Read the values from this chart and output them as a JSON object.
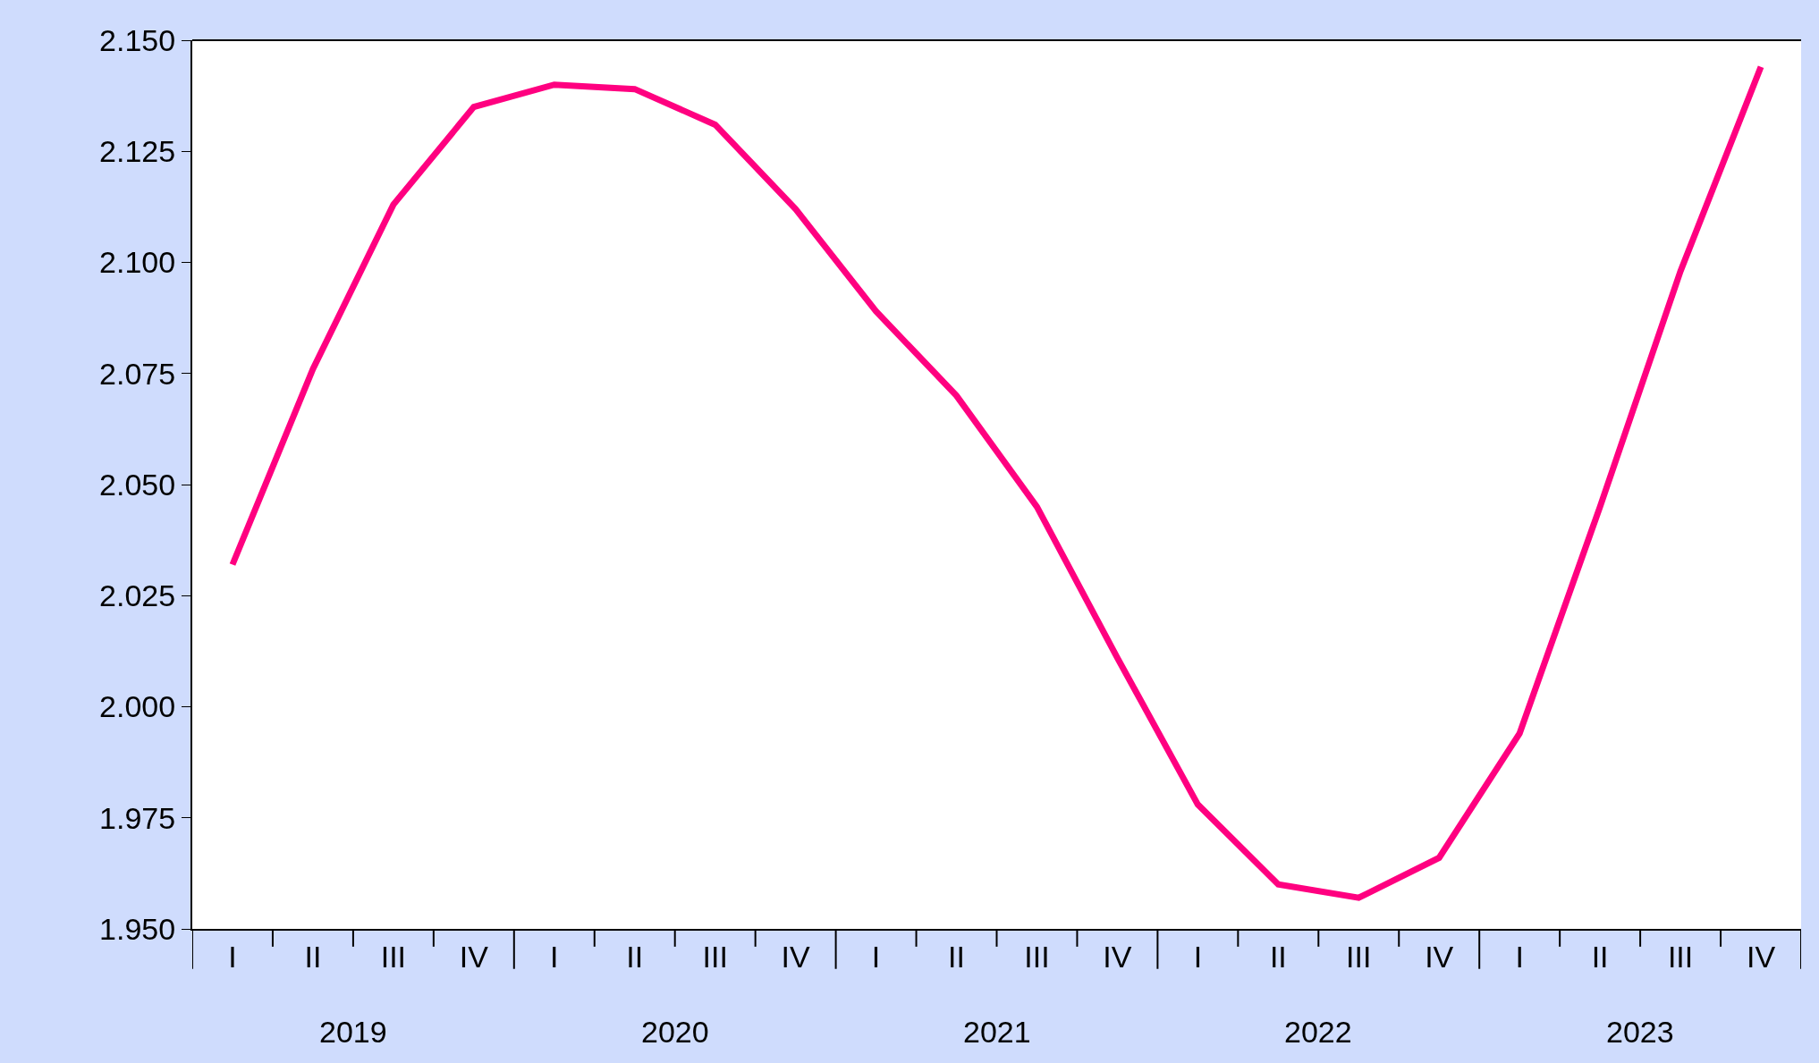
{
  "chart_data": {
    "type": "line",
    "categories": [
      "I",
      "II",
      "III",
      "IV",
      "I",
      "II",
      "III",
      "IV",
      "I",
      "II",
      "III",
      "IV",
      "I",
      "II",
      "III",
      "IV",
      "I",
      "II",
      "III",
      "IV"
    ],
    "series": [
      {
        "color": "#ff0080",
        "values": [
          2.032,
          2.076,
          2.113,
          2.135,
          2.14,
          2.139,
          2.131,
          2.112,
          2.089,
          2.07,
          2.045,
          2.011,
          1.978,
          1.96,
          1.957,
          1.966,
          1.994,
          2.045,
          2.098,
          2.144
        ]
      }
    ],
    "annotations": [
      "2019",
      "2020",
      "2021",
      "2022",
      "2023"
    ],
    "ylim": [
      1.95,
      2.15
    ],
    "yticks": [
      {
        "value": 1.95,
        "label": "1.950"
      },
      {
        "value": 1.975,
        "label": "1.975"
      },
      {
        "value": 2.0,
        "label": "2.000"
      },
      {
        "value": 2.025,
        "label": "2.025"
      },
      {
        "value": 2.05,
        "label": "2.050"
      },
      {
        "value": 2.075,
        "label": "2.075"
      },
      {
        "value": 2.1,
        "label": "2.100"
      },
      {
        "value": 2.125,
        "label": "2.125"
      },
      {
        "value": 2.15,
        "label": "2.150"
      }
    ],
    "marker": "none",
    "line_style": "solid"
  }
}
